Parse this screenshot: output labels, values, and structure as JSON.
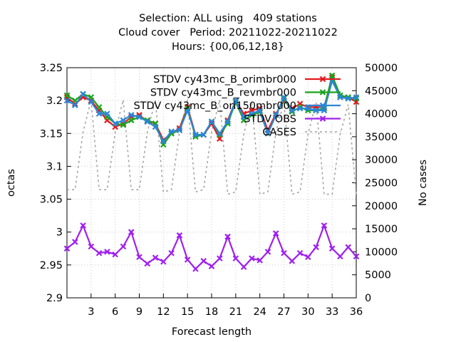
{
  "title_lines": [
    "Selection: ALL using   409 stations",
    "Cloud cover   Period: 20211022-20211022",
    "Hours: {00,06,12,18}"
  ],
  "chart_data": {
    "type": "line",
    "xlabel": "Forecast length",
    "ylabel": "octas",
    "y2label": "No cases",
    "xlim": [
      0,
      36
    ],
    "ylim": [
      2.9,
      3.25
    ],
    "y2lim": [
      0,
      50000
    ],
    "xticks": [
      3,
      6,
      9,
      12,
      15,
      18,
      21,
      24,
      27,
      30,
      33,
      36
    ],
    "yticks": [
      "2.9",
      "2.95",
      "3",
      "3.05",
      "3.1",
      "3.15",
      "3.2",
      "3.25"
    ],
    "y2ticks": [
      "0",
      "5000",
      "10000",
      "15000",
      "20000",
      "25000",
      "30000",
      "35000",
      "40000",
      "45000",
      "50000"
    ],
    "grid": true,
    "legend_position": "top-right",
    "x": [
      0,
      1,
      2,
      3,
      4,
      5,
      6,
      7,
      8,
      9,
      10,
      11,
      12,
      13,
      14,
      15,
      16,
      17,
      18,
      19,
      20,
      21,
      22,
      23,
      24,
      25,
      26,
      27,
      28,
      29,
      30,
      31,
      32,
      33,
      34,
      35,
      36
    ],
    "series": [
      {
        "name": "STDV cy43mc_B_orimbr000",
        "color": "#e41a1c",
        "marker": "x",
        "axis": "y1",
        "values": [
          3.205,
          3.195,
          3.205,
          3.2,
          3.185,
          3.17,
          3.16,
          3.165,
          3.175,
          3.178,
          3.168,
          3.165,
          3.14,
          3.15,
          3.158,
          3.19,
          3.148,
          3.148,
          3.165,
          3.142,
          3.17,
          3.2,
          3.18,
          3.185,
          3.188,
          3.155,
          3.18,
          3.2,
          3.188,
          3.195,
          3.19,
          3.19,
          3.19,
          3.235,
          3.205,
          3.205,
          3.198
        ]
      },
      {
        "name": "STDV cy43mc_B_revmbr000",
        "color": "#1aa31a",
        "marker": "x",
        "axis": "y1",
        "values": [
          3.208,
          3.2,
          3.21,
          3.205,
          3.19,
          3.175,
          3.165,
          3.163,
          3.17,
          3.175,
          3.17,
          3.165,
          3.133,
          3.15,
          3.155,
          3.188,
          3.145,
          3.148,
          3.168,
          3.148,
          3.165,
          3.198,
          3.17,
          3.178,
          3.183,
          3.15,
          3.178,
          3.203,
          3.183,
          3.19,
          3.185,
          3.185,
          3.188,
          3.238,
          3.208,
          3.205,
          3.203
        ]
      },
      {
        "name": "STDV cy43mc_B_ori150mbr000",
        "color": "#2b85d9",
        "marker": "x",
        "axis": "y1",
        "values": [
          3.2,
          3.193,
          3.21,
          3.198,
          3.18,
          3.18,
          3.165,
          3.17,
          3.178,
          3.175,
          3.168,
          3.16,
          3.138,
          3.153,
          3.155,
          3.185,
          3.148,
          3.148,
          3.168,
          3.15,
          3.168,
          3.2,
          3.175,
          3.18,
          3.185,
          3.15,
          3.178,
          3.205,
          3.185,
          3.188,
          3.188,
          3.185,
          3.185,
          3.23,
          3.205,
          3.203,
          3.205
        ]
      },
      {
        "name": "STDV OBS",
        "color": "#a020f0",
        "marker": "x",
        "axis": "y1",
        "values": [
          2.975,
          2.985,
          3.01,
          2.978,
          2.968,
          2.97,
          2.966,
          2.978,
          3.0,
          2.962,
          2.952,
          2.961,
          2.955,
          2.968,
          2.995,
          2.958,
          2.944,
          2.956,
          2.948,
          2.96,
          2.993,
          2.96,
          2.947,
          2.96,
          2.957,
          2.97,
          2.998,
          2.968,
          2.956,
          2.968,
          2.962,
          2.977,
          3.01,
          2.975,
          2.963,
          2.977,
          2.963
        ]
      },
      {
        "name": "CASES",
        "color": "#a0a0a0",
        "marker": "none",
        "dash": true,
        "axis": "y2",
        "values": [
          23500,
          23500,
          36000,
          43000,
          23500,
          23500,
          36000,
          43000,
          23500,
          23500,
          36000,
          43000,
          23000,
          23500,
          36000,
          43000,
          23000,
          23500,
          36000,
          43000,
          22500,
          23000,
          35500,
          42500,
          22500,
          23000,
          36000,
          42500,
          22500,
          23000,
          35500,
          42500,
          22500,
          22500,
          35500,
          42000,
          22500
        ]
      }
    ]
  }
}
